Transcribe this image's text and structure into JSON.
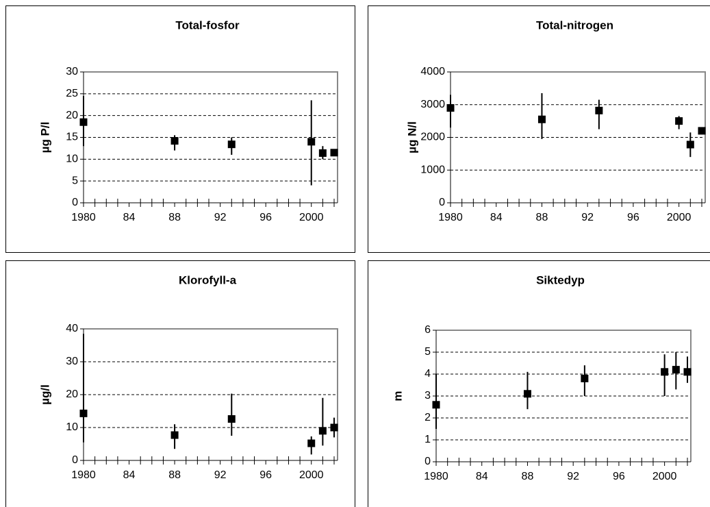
{
  "chart_data": [
    {
      "type": "scatter",
      "title": "Total-fosfor",
      "y_label": "µg P/l",
      "color": "#000000",
      "grid": true,
      "x": [
        1980,
        1988,
        1993,
        2000,
        2001,
        2002
      ],
      "values": [
        18.5,
        14.2,
        13.4,
        14,
        11.4,
        11.5
      ],
      "low": [
        13,
        12,
        11,
        4,
        10,
        11
      ],
      "high": [
        24.5,
        15.5,
        15,
        23.5,
        13,
        12
      ],
      "xlim": [
        1979.7,
        2002.3
      ],
      "ylim": [
        0,
        30
      ],
      "yticks": [
        0,
        5,
        10,
        15,
        20,
        25,
        30
      ],
      "xticks": [
        1980,
        {
          "value": 1984,
          "label": "84"
        },
        {
          "value": 1988,
          "label": "88"
        },
        {
          "value": 1992,
          "label": "92"
        },
        {
          "value": 1996,
          "label": "96"
        },
        2000
      ],
      "xminorticks": [
        1981,
        1982,
        1983,
        1985,
        1986,
        1987,
        1989,
        1990,
        1991,
        1993,
        1994,
        1995,
        1997,
        1998,
        1999,
        2001,
        2002
      ]
    },
    {
      "type": "scatter",
      "title": "Total-nitrogen",
      "y_label": "µg N/l",
      "color": "#000000",
      "grid": true,
      "x": [
        1980,
        1988,
        1993,
        2000,
        2001,
        2002
      ],
      "values": [
        2900,
        2550,
        2820,
        2500,
        1780,
        2200
      ],
      "low": [
        2300,
        1950,
        2250,
        2250,
        1400,
        2150
      ],
      "high": [
        3300,
        3350,
        3150,
        2650,
        2150,
        2300
      ],
      "xlim": [
        1979.7,
        2002.3
      ],
      "ylim": [
        0,
        4000
      ],
      "yticks": [
        0,
        1000,
        2000,
        3000,
        4000
      ],
      "xticks": [
        1980,
        {
          "value": 1984,
          "label": "84"
        },
        {
          "value": 1988,
          "label": "88"
        },
        {
          "value": 1992,
          "label": "92"
        },
        {
          "value": 1996,
          "label": "96"
        },
        2000
      ],
      "xminorticks": [
        1981,
        1982,
        1983,
        1985,
        1986,
        1987,
        1989,
        1990,
        1991,
        1993,
        1994,
        1995,
        1997,
        1998,
        1999,
        2001,
        2002
      ]
    },
    {
      "type": "scatter",
      "title": "Klorofyll-a",
      "y_label": "µg/l",
      "color": "#000000",
      "grid": true,
      "x": [
        1980,
        1988,
        1993,
        2000,
        2001,
        2002
      ],
      "values": [
        14.3,
        7.7,
        12.6,
        5.2,
        9,
        10
      ],
      "low": [
        5.5,
        3.5,
        7.5,
        1.8,
        4.5,
        7
      ],
      "high": [
        38.5,
        11,
        20.3,
        7.3,
        19,
        13
      ],
      "xlim": [
        1979.7,
        2002.3
      ],
      "ylim": [
        0,
        40
      ],
      "yticks": [
        0,
        10,
        20,
        30,
        40
      ],
      "xticks": [
        1980,
        {
          "value": 1984,
          "label": "84"
        },
        {
          "value": 1988,
          "label": "88"
        },
        {
          "value": 1992,
          "label": "92"
        },
        {
          "value": 1996,
          "label": "96"
        },
        2000
      ],
      "xminorticks": [
        1981,
        1982,
        1983,
        1985,
        1986,
        1987,
        1989,
        1990,
        1991,
        1993,
        1994,
        1995,
        1997,
        1998,
        1999,
        2001,
        2002
      ]
    },
    {
      "type": "scatter",
      "title": "Siktedyp",
      "y_label": "m",
      "color": "#000000",
      "grid": true,
      "x": [
        1980,
        1988,
        1993,
        2000,
        2001,
        2002
      ],
      "values": [
        2.6,
        3.1,
        3.8,
        4.1,
        4.2,
        4.1
      ],
      "low": [
        1.5,
        2.4,
        3,
        3,
        3.3,
        3.6
      ],
      "high": [
        4,
        4.1,
        4.4,
        4.9,
        5,
        4.8
      ],
      "xlim": [
        1979.7,
        2002.3
      ],
      "ylim": [
        0,
        6
      ],
      "yticks": [
        0,
        1,
        2,
        3,
        4,
        5,
        6
      ],
      "xticks": [
        1980,
        {
          "value": 1984,
          "label": "84"
        },
        {
          "value": 1988,
          "label": "88"
        },
        {
          "value": 1992,
          "label": "92"
        },
        {
          "value": 1996,
          "label": "96"
        },
        2000
      ],
      "xminorticks": [
        1981,
        1982,
        1983,
        1985,
        1986,
        1987,
        1989,
        1990,
        1991,
        1993,
        1994,
        1995,
        1997,
        1998,
        1999,
        2001,
        2002
      ]
    }
  ]
}
